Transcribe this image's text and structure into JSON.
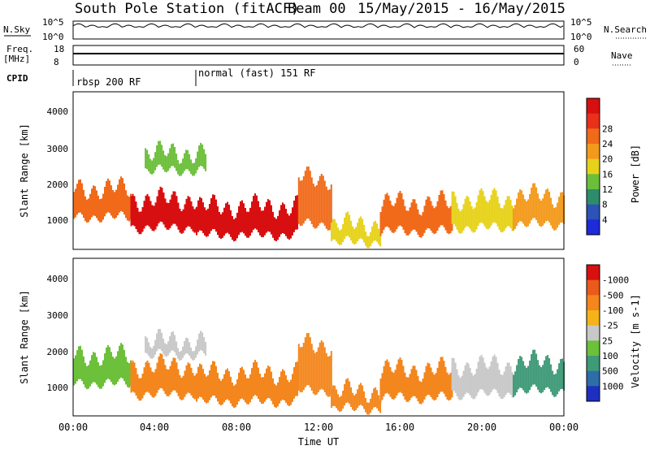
{
  "header": {
    "station": "South Pole Station (fitACF)",
    "beam": "Beam 00",
    "dates": "15/May/2015 - 16/May/2015"
  },
  "strip": {
    "nsky_label": "N.Sky",
    "nsky_ticks": [
      "10^5",
      "10^0"
    ],
    "nsearch_label": "N.Search",
    "nsearch_ticks": [
      "10^5",
      "10^0"
    ],
    "freq_label": "Freq.",
    "freq_unit": "[MHz]",
    "freq_ticks": [
      "18",
      "8"
    ],
    "nave_label": "Nave",
    "nave_ticks": [
      "60",
      "0"
    ],
    "cpid_label": "CPID"
  },
  "cpid_segments": [
    {
      "label": "rbsp 200 RF",
      "start_hour": 0
    },
    {
      "label": "normal (fast) 151 RF",
      "start_hour": 6
    }
  ],
  "axes": {
    "ylabel": "Slant Range [km]",
    "yticks": [
      "1000",
      "2000",
      "3000",
      "4000"
    ],
    "xticks": [
      "00:00",
      "04:00",
      "08:00",
      "12:00",
      "16:00",
      "20:00",
      "00:00"
    ],
    "xlabel": "Time UT"
  },
  "chart_data": [
    {
      "type": "heatmap",
      "panel": "power",
      "x": "time UT (hours), 0-24",
      "xlim": [
        0,
        24
      ],
      "ylim": [
        200,
        4600
      ],
      "colorbar": {
        "label": "Power [dB]",
        "ticks": [
          "4",
          "8",
          "12",
          "16",
          "20",
          "24",
          "28"
        ],
        "colors": [
          "#1d2bd8",
          "#2d52b8",
          "#2e8c6a",
          "#6cbf3b",
          "#e6d21a",
          "#f39a1c",
          "#f06a1a",
          "#e8301a",
          "#d80f10"
        ]
      },
      "bands": [
        {
          "x": [
            0.0,
            2.8
          ],
          "y": [
            1100,
            1900
          ],
          "value": 24
        },
        {
          "x": [
            2.8,
            6.0
          ],
          "y": [
            800,
            1600
          ],
          "value": 28
        },
        {
          "x": [
            6.0,
            11.0
          ],
          "y": [
            600,
            1400
          ],
          "value": 28
        },
        {
          "x": [
            11.0,
            12.6
          ],
          "y": [
            900,
            2200
          ],
          "value": 24
        },
        {
          "x": [
            12.6,
            15.0
          ],
          "y": [
            400,
            900
          ],
          "value": 16
        },
        {
          "x": [
            15.0,
            18.5
          ],
          "y": [
            700,
            1500
          ],
          "value": 24
        },
        {
          "x": [
            18.5,
            21.5
          ],
          "y": [
            800,
            1600
          ],
          "value": 16
        },
        {
          "x": [
            21.5,
            24.0
          ],
          "y": [
            900,
            1700
          ],
          "value": 20
        },
        {
          "x": [
            3.5,
            6.5
          ],
          "y": [
            2400,
            2900
          ],
          "value": 12
        }
      ]
    },
    {
      "type": "heatmap",
      "panel": "velocity",
      "x": "time UT (hours), 0-24",
      "xlim": [
        0,
        24
      ],
      "ylim": [
        200,
        4600
      ],
      "colorbar": {
        "label": "Velocity [m s-1]",
        "ticks": [
          "1000",
          "500",
          "100",
          "25",
          "-25",
          "-100",
          "-500",
          "-1000"
        ],
        "colors": [
          "#1e2fc0",
          "#2d6da8",
          "#3f9a78",
          "#6cc03a",
          "#c8c8c8",
          "#f4b318",
          "#f3861c",
          "#ea5a1a",
          "#d8100f"
        ]
      },
      "bands": [
        {
          "x": [
            0.0,
            2.8
          ],
          "y": [
            1100,
            1900
          ],
          "value": 100
        },
        {
          "x": [
            2.8,
            6.0
          ],
          "y": [
            800,
            1600
          ],
          "value": -100
        },
        {
          "x": [
            6.0,
            11.0
          ],
          "y": [
            600,
            1400
          ],
          "value": -100
        },
        {
          "x": [
            11.0,
            12.6
          ],
          "y": [
            900,
            2200
          ],
          "value": -100
        },
        {
          "x": [
            12.6,
            15.0
          ],
          "y": [
            400,
            900
          ],
          "value": -100
        },
        {
          "x": [
            15.0,
            18.5
          ],
          "y": [
            700,
            1500
          ],
          "value": -100
        },
        {
          "x": [
            18.5,
            21.5
          ],
          "y": [
            800,
            1600
          ],
          "value": 25
        },
        {
          "x": [
            21.5,
            24.0
          ],
          "y": [
            900,
            1700
          ],
          "value": 500
        },
        {
          "x": [
            3.5,
            6.5
          ],
          "y": [
            1900,
            2300
          ],
          "value": 0
        }
      ]
    }
  ]
}
